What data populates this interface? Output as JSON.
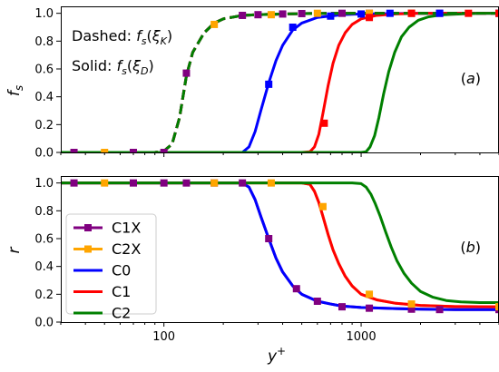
{
  "chart_data": [
    {
      "panel": "a",
      "type": "line",
      "title": "",
      "xlabel": "",
      "ylabel": "fs",
      "xscale": "log",
      "xlim": [
        30,
        5000
      ],
      "ylim": [
        0,
        1.05
      ],
      "yticks": [
        0.0,
        0.2,
        0.4,
        0.6,
        0.8,
        1.0
      ],
      "ytick_labels": [
        "0.0",
        "0.2",
        "0.4",
        "0.6",
        "0.8",
        "1.0"
      ],
      "xticks": [
        100,
        1000
      ],
      "panel_label": "(a)",
      "annotations": [
        {
          "label": "Dashed: ",
          "math": "fs(ξK)"
        },
        {
          "label": "Solid: ",
          "math": "fs(ξD)"
        }
      ],
      "series": [
        {
          "name": "C1X",
          "color": "#800080",
          "style": "dashed",
          "marker": "square",
          "x": [
            30,
            50,
            70,
            90,
            100,
            110,
            120,
            130,
            140,
            160,
            180,
            200,
            250,
            300,
            400,
            500,
            800,
            1000,
            2000,
            3000,
            5000
          ],
          "y": [
            0,
            0,
            0,
            0,
            0.01,
            0.06,
            0.25,
            0.55,
            0.72,
            0.86,
            0.93,
            0.96,
            0.985,
            0.99,
            0.995,
            0.998,
            1.0,
            1.0,
            1.0,
            1.0,
            1.0
          ],
          "marker_x": [
            35,
            70,
            100,
            130,
            250,
            300,
            400,
            500,
            800,
            1100,
            1800,
            2500,
            5000
          ],
          "marker_y": [
            0.0,
            0.0,
            0.0,
            0.57,
            0.985,
            0.99,
            0.995,
            0.998,
            1.0,
            1.0,
            1.0,
            1.0,
            1.0
          ]
        },
        {
          "name": "C2X",
          "color": "#ffa500",
          "style": "dashed",
          "marker": "square",
          "x": [
            30,
            50,
            70,
            90,
            100,
            110,
            120,
            130,
            140,
            160,
            180,
            200,
            250,
            300,
            400,
            500,
            800,
            1000,
            2000,
            3000,
            5000
          ],
          "y": [
            0,
            0,
            0,
            0,
            0.01,
            0.06,
            0.25,
            0.55,
            0.72,
            0.86,
            0.93,
            0.96,
            0.985,
            0.99,
            0.995,
            0.998,
            1.0,
            1.0,
            1.0,
            1.0,
            1.0
          ],
          "marker_x": [
            50,
            180,
            350,
            600,
            1100,
            1800,
            5000
          ],
          "marker_y": [
            0.0,
            0.92,
            0.99,
            1.0,
            1.0,
            1.0,
            1.0
          ]
        },
        {
          "name": "C0",
          "color": "#0000ff",
          "style": "dashed",
          "x": [
            30,
            50,
            70,
            90,
            100,
            110,
            120,
            130,
            140,
            160,
            180,
            200,
            250,
            300,
            400,
            500,
            800,
            1000,
            2000,
            3000,
            5000
          ],
          "y": [
            0,
            0,
            0,
            0,
            0.01,
            0.06,
            0.25,
            0.55,
            0.72,
            0.86,
            0.93,
            0.96,
            0.985,
            0.99,
            0.995,
            0.998,
            1.0,
            1.0,
            1.0,
            1.0,
            1.0
          ]
        },
        {
          "name": "C1",
          "color": "#ff0000",
          "style": "dashed",
          "x": [
            30,
            50,
            70,
            90,
            100,
            110,
            120,
            130,
            140,
            160,
            180,
            200,
            250,
            300,
            400,
            500,
            800,
            1000,
            2000,
            3000,
            5000
          ],
          "y": [
            0,
            0,
            0,
            0,
            0.01,
            0.06,
            0.25,
            0.55,
            0.72,
            0.86,
            0.93,
            0.96,
            0.985,
            0.99,
            0.995,
            0.998,
            1.0,
            1.0,
            1.0,
            1.0,
            1.0
          ]
        },
        {
          "name": "C2",
          "color": "#008000",
          "style": "dashed",
          "x": [
            30,
            50,
            70,
            90,
            100,
            110,
            120,
            130,
            140,
            160,
            180,
            200,
            250,
            300,
            400,
            500,
            800,
            1000,
            2000,
            3000,
            5000
          ],
          "y": [
            0,
            0,
            0,
            0,
            0.01,
            0.06,
            0.25,
            0.55,
            0.72,
            0.86,
            0.93,
            0.96,
            0.985,
            0.99,
            0.995,
            0.998,
            1.0,
            1.0,
            1.0,
            1.0,
            1.0
          ]
        },
        {
          "name": "C0",
          "color": "#0000ff",
          "style": "solid",
          "marker": "square",
          "x": [
            30,
            200,
            250,
            270,
            290,
            310,
            340,
            370,
            400,
            450,
            500,
            600,
            800,
            1000,
            2000,
            5000
          ],
          "y": [
            0,
            0,
            0.0,
            0.04,
            0.15,
            0.3,
            0.5,
            0.66,
            0.77,
            0.88,
            0.93,
            0.97,
            0.99,
            0.995,
            1.0,
            1.0
          ],
          "marker_x": [
            340,
            450,
            700,
            1000,
            1400,
            2500,
            5000
          ],
          "marker_y": [
            0.49,
            0.9,
            0.98,
            0.995,
            1.0,
            1.0,
            1.0
          ]
        },
        {
          "name": "C1",
          "color": "#ff0000",
          "style": "solid",
          "marker": "square",
          "x": [
            30,
            500,
            550,
            580,
            610,
            640,
            680,
            720,
            770,
            830,
            900,
            1000,
            1200,
            1500,
            2000,
            5000
          ],
          "y": [
            0,
            0,
            0.005,
            0.04,
            0.13,
            0.28,
            0.48,
            0.64,
            0.77,
            0.86,
            0.92,
            0.96,
            0.985,
            0.995,
            1.0,
            1.0
          ],
          "marker_x": [
            650,
            1100,
            1800,
            3500,
            5000
          ],
          "marker_y": [
            0.21,
            0.97,
            1.0,
            1.0,
            1.0
          ]
        },
        {
          "name": "C2",
          "color": "#008000",
          "style": "solid",
          "x": [
            30,
            1000,
            1060,
            1110,
            1170,
            1230,
            1300,
            1380,
            1480,
            1600,
            1750,
            1950,
            2200,
            2600,
            3200,
            4000,
            5000
          ],
          "y": [
            0,
            0,
            0.005,
            0.04,
            0.12,
            0.25,
            0.42,
            0.58,
            0.72,
            0.83,
            0.9,
            0.95,
            0.975,
            0.99,
            0.995,
            1.0,
            1.0
          ]
        }
      ]
    },
    {
      "panel": "b",
      "type": "line",
      "title": "",
      "xlabel": "y +",
      "ylabel": "r",
      "xscale": "log",
      "xlim": [
        30,
        5000
      ],
      "ylim": [
        0,
        1.05
      ],
      "yticks": [
        0.0,
        0.2,
        0.4,
        0.6,
        0.8,
        1.0
      ],
      "ytick_labels": [
        "0.0",
        "0.2",
        "0.4",
        "0.6",
        "0.8",
        "1.0"
      ],
      "xticks": [
        100,
        1000
      ],
      "xtick_labels": [
        "100",
        "1000"
      ],
      "panel_label": "(b)",
      "legend": "left",
      "series": [
        {
          "name": "C1X",
          "color": "#800080",
          "style": "solid",
          "marker": "square",
          "x": [
            30,
            250,
            270,
            290,
            310,
            340,
            370,
            400,
            450,
            500,
            600,
            700,
            800,
            1000,
            1500,
            2000,
            3000,
            5000
          ],
          "y": [
            1.0,
            1.0,
            0.97,
            0.88,
            0.76,
            0.6,
            0.46,
            0.36,
            0.26,
            0.2,
            0.15,
            0.13,
            0.115,
            0.105,
            0.097,
            0.093,
            0.09,
            0.09
          ],
          "marker_x": [
            35,
            70,
            100,
            130,
            180,
            250,
            340,
            470,
            600,
            800,
            1100,
            1800,
            2500,
            5000
          ],
          "marker_y": [
            1.0,
            1.0,
            1.0,
            1.0,
            1.0,
            1.0,
            0.6,
            0.24,
            0.15,
            0.11,
            0.1,
            0.093,
            0.09,
            0.09
          ]
        },
        {
          "name": "C2X",
          "color": "#ffa500",
          "style": "solid",
          "marker": "square",
          "x": [
            30,
            500,
            550,
            580,
            610,
            640,
            680,
            720,
            770,
            830,
            900,
            1000,
            1200,
            1500,
            2000,
            3000,
            5000
          ],
          "y": [
            1.0,
            1.0,
            0.99,
            0.94,
            0.86,
            0.76,
            0.63,
            0.52,
            0.42,
            0.33,
            0.26,
            0.2,
            0.16,
            0.135,
            0.12,
            0.112,
            0.11
          ],
          "marker_x": [
            50,
            180,
            350,
            640,
            1100,
            1800,
            5000
          ],
          "marker_y": [
            1.0,
            1.0,
            1.0,
            0.83,
            0.2,
            0.13,
            0.11
          ]
        },
        {
          "name": "C0",
          "color": "#0000ff",
          "style": "solid",
          "x": [
            30,
            250,
            270,
            290,
            310,
            340,
            370,
            400,
            450,
            500,
            600,
            700,
            800,
            1000,
            1500,
            2000,
            3000,
            5000
          ],
          "y": [
            1.0,
            1.0,
            0.97,
            0.88,
            0.76,
            0.6,
            0.46,
            0.36,
            0.26,
            0.2,
            0.15,
            0.13,
            0.115,
            0.105,
            0.097,
            0.093,
            0.09,
            0.09
          ]
        },
        {
          "name": "C1",
          "color": "#ff0000",
          "style": "solid",
          "x": [
            30,
            500,
            550,
            580,
            610,
            640,
            680,
            720,
            770,
            830,
            900,
            1000,
            1200,
            1500,
            2000,
            3000,
            5000
          ],
          "y": [
            1.0,
            1.0,
            0.99,
            0.94,
            0.86,
            0.76,
            0.63,
            0.52,
            0.42,
            0.33,
            0.26,
            0.2,
            0.16,
            0.135,
            0.12,
            0.112,
            0.11
          ]
        },
        {
          "name": "C2",
          "color": "#008000",
          "style": "solid",
          "x": [
            30,
            900,
            1000,
            1060,
            1120,
            1180,
            1250,
            1330,
            1420,
            1520,
            1650,
            1800,
            2000,
            2300,
            2700,
            3200,
            4000,
            5000
          ],
          "y": [
            1.0,
            1.0,
            0.995,
            0.97,
            0.92,
            0.85,
            0.76,
            0.65,
            0.54,
            0.44,
            0.35,
            0.28,
            0.22,
            0.18,
            0.155,
            0.145,
            0.14,
            0.14
          ]
        }
      ]
    }
  ]
}
